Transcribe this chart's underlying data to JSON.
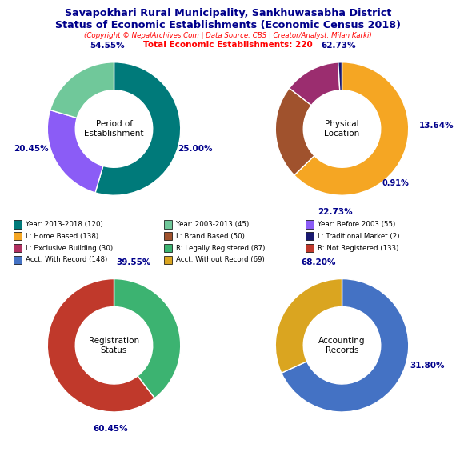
{
  "title_line1": "Savapokhari Rural Municipality, Sankhuwasabha District",
  "title_line2": "Status of Economic Establishments (Economic Census 2018)",
  "subtitle": "(Copyright © NepalArchives.Com | Data Source: CBS | Creator/Analyst: Milan Karki)",
  "total_line": "Total Economic Establishments: 220",
  "pie1_label": "Period of\nEstablishment",
  "pie1_values": [
    54.55,
    25.0,
    20.45
  ],
  "pie1_colors": [
    "#007A7A",
    "#8B5CF6",
    "#70C89A"
  ],
  "pie1_startangle": 90,
  "pie2_label": "Physical\nLocation",
  "pie2_values": [
    62.73,
    22.73,
    13.64,
    0.91
  ],
  "pie2_colors": [
    "#F5A623",
    "#A0522D",
    "#9B2D6F",
    "#191970"
  ],
  "pie2_startangle": 90,
  "pie3_label": "Registration\nStatus",
  "pie3_values": [
    39.55,
    60.45
  ],
  "pie3_colors": [
    "#3CB371",
    "#C0392B"
  ],
  "pie3_startangle": 90,
  "pie4_label": "Accounting\nRecords",
  "pie4_values": [
    68.2,
    31.8
  ],
  "pie4_colors": [
    "#4472C4",
    "#DAA520"
  ],
  "pie4_startangle": 90,
  "legend_data": [
    [
      "Year: 2013-2018 (120)",
      "#007A7A"
    ],
    [
      "Year: 2003-2013 (45)",
      "#70C89A"
    ],
    [
      "Year: Before 2003 (55)",
      "#8B5CF6"
    ],
    [
      "L: Home Based (138)",
      "#F5A623"
    ],
    [
      "L: Brand Based (50)",
      "#A0522D"
    ],
    [
      "L: Traditional Market (2)",
      "#191970"
    ],
    [
      "L: Exclusive Building (30)",
      "#B03060"
    ],
    [
      "R: Legally Registered (87)",
      "#3CB371"
    ],
    [
      "R: Not Registered (133)",
      "#C0392B"
    ],
    [
      "Acct: With Record (148)",
      "#4472C4"
    ],
    [
      "Acct: Without Record (69)",
      "#DAA520"
    ]
  ],
  "title_color": "#00008B",
  "subtitle_color": "#FF0000",
  "total_color": "#FF0000",
  "pct_color": "#00008B",
  "bg_color": "#FFFFFF"
}
